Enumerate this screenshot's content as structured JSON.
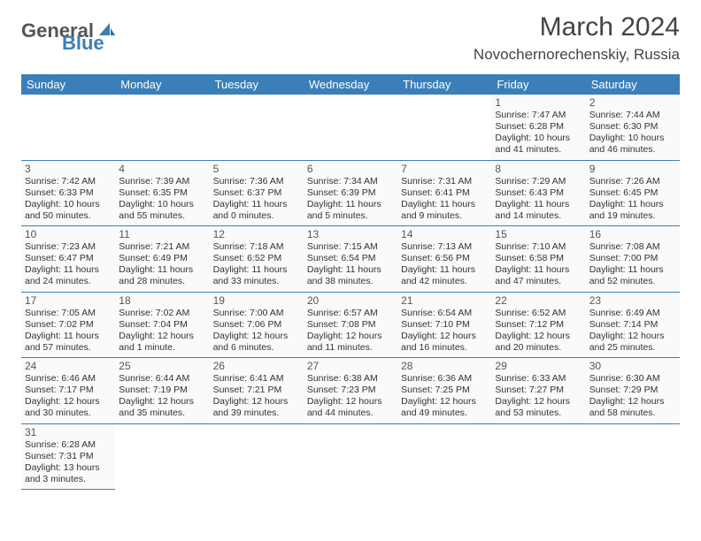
{
  "brand": {
    "part1": "General",
    "part2": "Blue"
  },
  "title": "March 2024",
  "location": "Novochernorechenskiy, Russia",
  "weekdays": [
    "Sunday",
    "Monday",
    "Tuesday",
    "Wednesday",
    "Thursday",
    "Friday",
    "Saturday"
  ],
  "colors": {
    "header_bg": "#3b7fb8",
    "cell_bg": "#fafafa",
    "border": "#3b7fb8",
    "text": "#333333"
  },
  "leading_blanks": 5,
  "days": [
    {
      "n": 1,
      "sunrise": "7:47 AM",
      "sunset": "6:28 PM",
      "daylight": "10 hours and 41 minutes."
    },
    {
      "n": 2,
      "sunrise": "7:44 AM",
      "sunset": "6:30 PM",
      "daylight": "10 hours and 46 minutes."
    },
    {
      "n": 3,
      "sunrise": "7:42 AM",
      "sunset": "6:33 PM",
      "daylight": "10 hours and 50 minutes."
    },
    {
      "n": 4,
      "sunrise": "7:39 AM",
      "sunset": "6:35 PM",
      "daylight": "10 hours and 55 minutes."
    },
    {
      "n": 5,
      "sunrise": "7:36 AM",
      "sunset": "6:37 PM",
      "daylight": "11 hours and 0 minutes."
    },
    {
      "n": 6,
      "sunrise": "7:34 AM",
      "sunset": "6:39 PM",
      "daylight": "11 hours and 5 minutes."
    },
    {
      "n": 7,
      "sunrise": "7:31 AM",
      "sunset": "6:41 PM",
      "daylight": "11 hours and 9 minutes."
    },
    {
      "n": 8,
      "sunrise": "7:29 AM",
      "sunset": "6:43 PM",
      "daylight": "11 hours and 14 minutes."
    },
    {
      "n": 9,
      "sunrise": "7:26 AM",
      "sunset": "6:45 PM",
      "daylight": "11 hours and 19 minutes."
    },
    {
      "n": 10,
      "sunrise": "7:23 AM",
      "sunset": "6:47 PM",
      "daylight": "11 hours and 24 minutes."
    },
    {
      "n": 11,
      "sunrise": "7:21 AM",
      "sunset": "6:49 PM",
      "daylight": "11 hours and 28 minutes."
    },
    {
      "n": 12,
      "sunrise": "7:18 AM",
      "sunset": "6:52 PM",
      "daylight": "11 hours and 33 minutes."
    },
    {
      "n": 13,
      "sunrise": "7:15 AM",
      "sunset": "6:54 PM",
      "daylight": "11 hours and 38 minutes."
    },
    {
      "n": 14,
      "sunrise": "7:13 AM",
      "sunset": "6:56 PM",
      "daylight": "11 hours and 42 minutes."
    },
    {
      "n": 15,
      "sunrise": "7:10 AM",
      "sunset": "6:58 PM",
      "daylight": "11 hours and 47 minutes."
    },
    {
      "n": 16,
      "sunrise": "7:08 AM",
      "sunset": "7:00 PM",
      "daylight": "11 hours and 52 minutes."
    },
    {
      "n": 17,
      "sunrise": "7:05 AM",
      "sunset": "7:02 PM",
      "daylight": "11 hours and 57 minutes."
    },
    {
      "n": 18,
      "sunrise": "7:02 AM",
      "sunset": "7:04 PM",
      "daylight": "12 hours and 1 minute."
    },
    {
      "n": 19,
      "sunrise": "7:00 AM",
      "sunset": "7:06 PM",
      "daylight": "12 hours and 6 minutes."
    },
    {
      "n": 20,
      "sunrise": "6:57 AM",
      "sunset": "7:08 PM",
      "daylight": "12 hours and 11 minutes."
    },
    {
      "n": 21,
      "sunrise": "6:54 AM",
      "sunset": "7:10 PM",
      "daylight": "12 hours and 16 minutes."
    },
    {
      "n": 22,
      "sunrise": "6:52 AM",
      "sunset": "7:12 PM",
      "daylight": "12 hours and 20 minutes."
    },
    {
      "n": 23,
      "sunrise": "6:49 AM",
      "sunset": "7:14 PM",
      "daylight": "12 hours and 25 minutes."
    },
    {
      "n": 24,
      "sunrise": "6:46 AM",
      "sunset": "7:17 PM",
      "daylight": "12 hours and 30 minutes."
    },
    {
      "n": 25,
      "sunrise": "6:44 AM",
      "sunset": "7:19 PM",
      "daylight": "12 hours and 35 minutes."
    },
    {
      "n": 26,
      "sunrise": "6:41 AM",
      "sunset": "7:21 PM",
      "daylight": "12 hours and 39 minutes."
    },
    {
      "n": 27,
      "sunrise": "6:38 AM",
      "sunset": "7:23 PM",
      "daylight": "12 hours and 44 minutes."
    },
    {
      "n": 28,
      "sunrise": "6:36 AM",
      "sunset": "7:25 PM",
      "daylight": "12 hours and 49 minutes."
    },
    {
      "n": 29,
      "sunrise": "6:33 AM",
      "sunset": "7:27 PM",
      "daylight": "12 hours and 53 minutes."
    },
    {
      "n": 30,
      "sunrise": "6:30 AM",
      "sunset": "7:29 PM",
      "daylight": "12 hours and 58 minutes."
    },
    {
      "n": 31,
      "sunrise": "6:28 AM",
      "sunset": "7:31 PM",
      "daylight": "13 hours and 3 minutes."
    }
  ]
}
